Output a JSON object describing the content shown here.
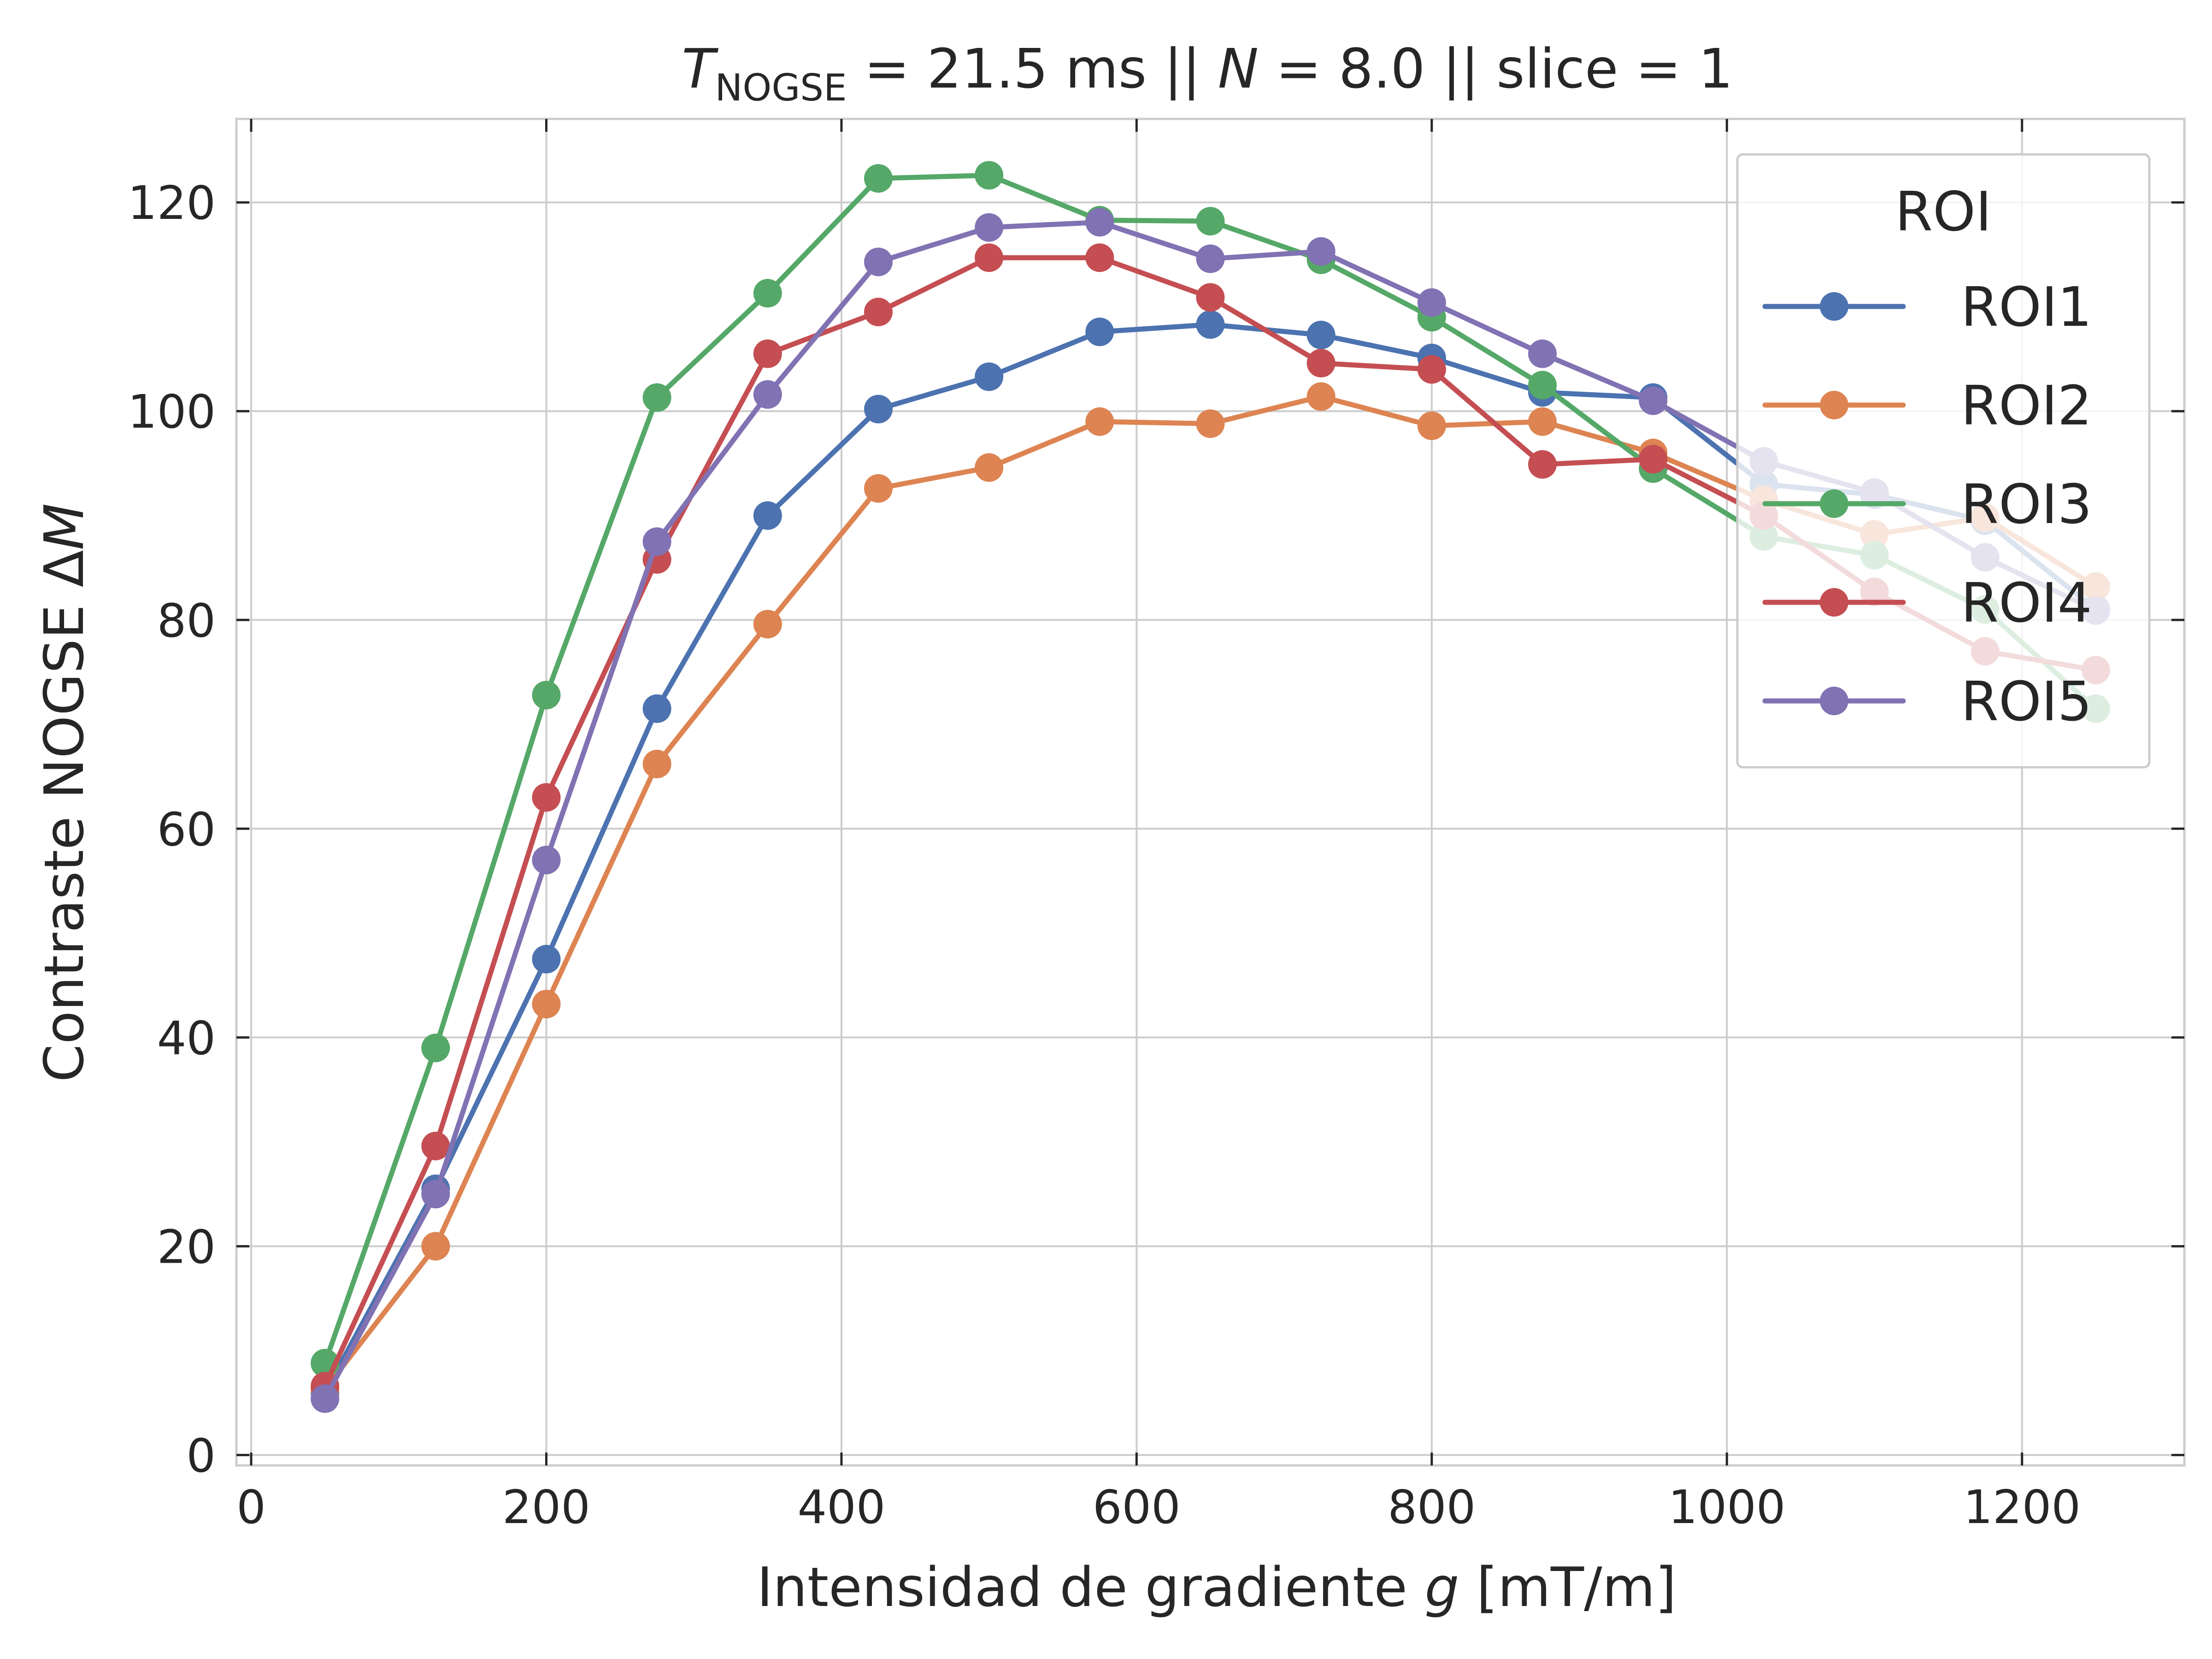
{
  "chart_data": {
    "type": "line",
    "title": "T_NOGSE = 21.5 ms || N = 8.0 || slice = 1",
    "title_parts": {
      "symbol": "T",
      "subscript": "NOGSE",
      "rest_a": " = 21.5 ms  ||  ",
      "n_symbol": "N",
      "rest_b": " = 8.0 || slice = 1"
    },
    "xlabel": "Intensidad de gradiente g [mT/m]",
    "xlabel_parts": {
      "pre": "Intensidad de gradiente ",
      "var": "g",
      "post": " [mT/m]"
    },
    "ylabel": "Contraste NOGSE ΔM",
    "ylabel_parts": {
      "pre": "Contraste NOGSE Δ",
      "var": "M"
    },
    "xlim": [
      -10,
      1310
    ],
    "ylim": [
      -1,
      128
    ],
    "xticks": [
      0,
      200,
      400,
      600,
      800,
      1000,
      1200
    ],
    "yticks": [
      0,
      20,
      40,
      60,
      80,
      100,
      120
    ],
    "grid": true,
    "legend": {
      "title": "ROI",
      "placement": "top-right"
    },
    "x": [
      50,
      125,
      200,
      275,
      350,
      425,
      500,
      575,
      650,
      725,
      800,
      875,
      950,
      1025,
      1100,
      1175,
      1250
    ],
    "series": [
      {
        "name": "ROI1",
        "color": "#4c72b0",
        "values": [
          6.0,
          25.5,
          47.5,
          71.5,
          90.0,
          100.2,
          103.3,
          107.6,
          108.3,
          107.3,
          105.1,
          101.8,
          101.3,
          93.0,
          92.0,
          89.5,
          81.0
        ]
      },
      {
        "name": "ROI2",
        "color": "#dd8452",
        "values": [
          6.3,
          20.0,
          43.2,
          66.2,
          79.6,
          92.6,
          94.6,
          99.0,
          98.8,
          101.4,
          98.6,
          99.0,
          96.0,
          91.5,
          88.2,
          89.8,
          83.2
        ]
      },
      {
        "name": "ROI3",
        "color": "#55a868",
        "values": [
          8.8,
          39.0,
          72.8,
          101.3,
          111.3,
          122.3,
          122.6,
          118.3,
          118.2,
          114.5,
          109.0,
          102.5,
          94.5,
          88.0,
          86.2,
          81.0,
          71.5
        ]
      },
      {
        "name": "ROI4",
        "color": "#c44e52",
        "values": [
          6.6,
          29.6,
          63.0,
          85.8,
          105.5,
          109.5,
          114.7,
          114.7,
          110.9,
          104.6,
          104.0,
          94.9,
          95.4,
          90.0,
          82.7,
          77.0,
          75.2
        ]
      },
      {
        "name": "ROI5",
        "color": "#8172b3",
        "values": [
          5.4,
          25.0,
          57.0,
          87.5,
          101.6,
          114.3,
          117.6,
          118.1,
          114.6,
          115.3,
          110.4,
          105.5,
          101.0,
          95.2,
          92.2,
          86.0,
          80.9
        ]
      }
    ]
  }
}
